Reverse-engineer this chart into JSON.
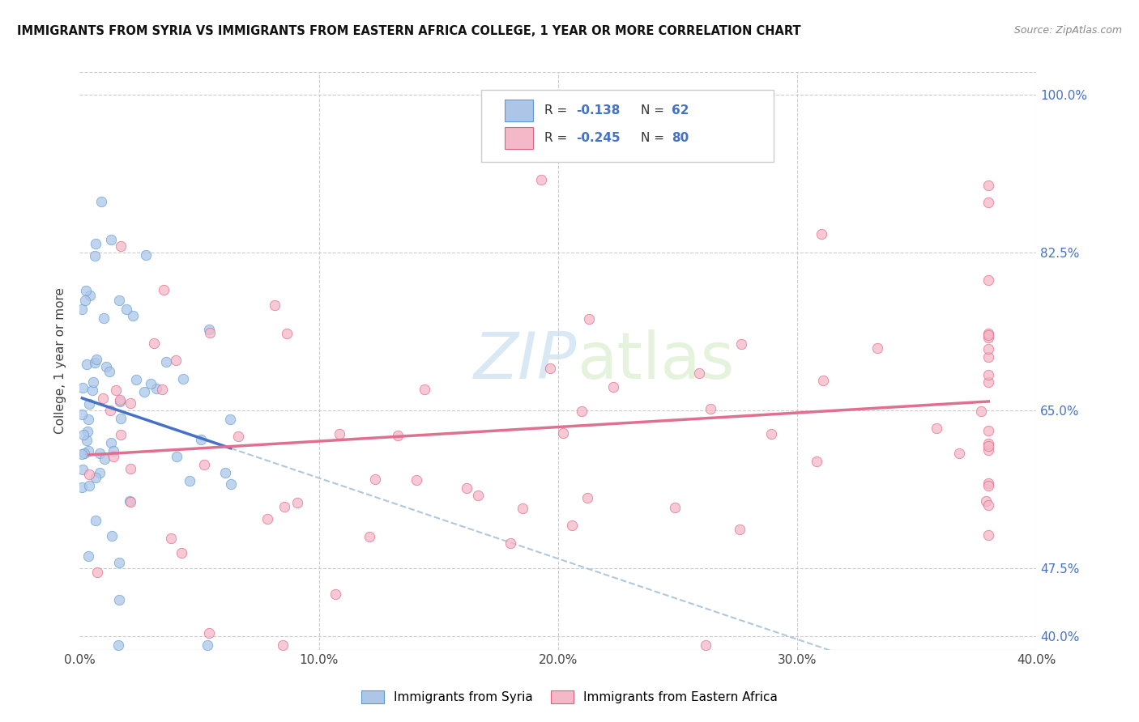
{
  "title": "IMMIGRANTS FROM SYRIA VS IMMIGRANTS FROM EASTERN AFRICA COLLEGE, 1 YEAR OR MORE CORRELATION CHART",
  "source": "Source: ZipAtlas.com",
  "ylabel": "College, 1 year or more",
  "ylabel_right_ticks": [
    "100.0%",
    "82.5%",
    "65.0%",
    "47.5%",
    "40.0%"
  ],
  "ylabel_right_vals": [
    1.0,
    0.825,
    0.65,
    0.475,
    0.4
  ],
  "legend_label1": "Immigrants from Syria",
  "legend_label2": "Immigrants from Eastern Africa",
  "color_syria_fill": "#adc6e8",
  "color_syria_edge": "#5b9bd5",
  "color_eastern_fill": "#f4b8c8",
  "color_eastern_edge": "#e06080",
  "color_syria_line": "#4472c4",
  "color_eastern_line": "#e07090",
  "color_dash": "#b0c8dc",
  "watermark_color": "#c8dff0",
  "xmin": 0.0,
  "xmax": 0.4,
  "ymin": 0.385,
  "ymax": 1.025,
  "xticks": [
    0.0,
    0.1,
    0.2,
    0.3,
    0.4
  ],
  "xtick_labels": [
    "0.0%",
    "10.0%",
    "20.0%",
    "30.0%",
    "40.0%"
  ],
  "syria_r": -0.138,
  "syria_n": 62,
  "eastern_r": -0.245,
  "eastern_n": 80
}
